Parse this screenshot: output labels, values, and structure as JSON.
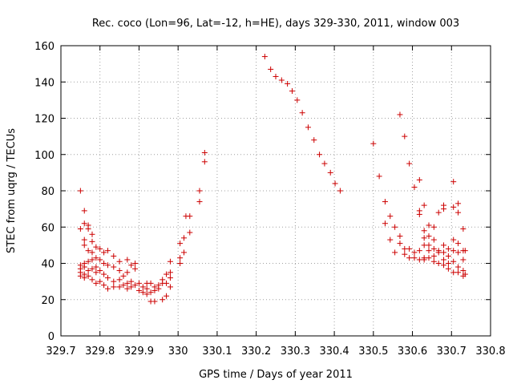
{
  "chart_data": {
    "type": "scatter",
    "title": "Rec. coco (Lon=96, Lat=-12, h=HE), days 329-330, 2011, window 003",
    "xlabel": "GPS time / Days of year 2011",
    "ylabel": "STEC from uqrg / TECUs",
    "xlim": [
      329.7,
      330.8
    ],
    "ylim": [
      0,
      160
    ],
    "xticks": [
      "329.7",
      "329.8",
      "329.9",
      "330",
      "330.1",
      "330.2",
      "330.3",
      "330.4",
      "330.5",
      "330.6",
      "330.7",
      "330.8"
    ],
    "xtick_values": [
      329.7,
      329.8,
      329.9,
      330.0,
      330.1,
      330.2,
      330.3,
      330.4,
      330.5,
      330.6,
      330.7,
      330.8
    ],
    "yticks": [
      "0",
      "20",
      "40",
      "60",
      "80",
      "100",
      "120",
      "140",
      "160"
    ],
    "ytick_values": [
      0,
      20,
      40,
      60,
      80,
      100,
      120,
      140,
      160
    ],
    "grid": true,
    "legend": "none",
    "marker": "+",
    "color": "#cc0000",
    "points": [
      [
        329.75,
        80
      ],
      [
        329.75,
        59
      ],
      [
        329.75,
        39
      ],
      [
        329.75,
        37
      ],
      [
        329.75,
        35
      ],
      [
        329.75,
        33
      ],
      [
        329.76,
        69
      ],
      [
        329.76,
        62
      ],
      [
        329.76,
        53
      ],
      [
        329.76,
        50
      ],
      [
        329.76,
        40
      ],
      [
        329.76,
        38
      ],
      [
        329.76,
        34
      ],
      [
        329.76,
        32
      ],
      [
        329.77,
        61
      ],
      [
        329.77,
        59
      ],
      [
        329.77,
        47
      ],
      [
        329.77,
        41
      ],
      [
        329.77,
        36
      ],
      [
        329.77,
        33
      ],
      [
        329.78,
        56
      ],
      [
        329.78,
        52
      ],
      [
        329.78,
        46
      ],
      [
        329.78,
        42
      ],
      [
        329.78,
        37
      ],
      [
        329.78,
        31
      ],
      [
        329.79,
        49
      ],
      [
        329.79,
        43
      ],
      [
        329.79,
        38
      ],
      [
        329.79,
        35
      ],
      [
        329.79,
        29
      ],
      [
        329.8,
        48
      ],
      [
        329.8,
        42
      ],
      [
        329.8,
        36
      ],
      [
        329.8,
        30
      ],
      [
        329.81,
        46
      ],
      [
        329.81,
        40
      ],
      [
        329.81,
        34
      ],
      [
        329.81,
        28
      ],
      [
        329.82,
        47
      ],
      [
        329.82,
        39
      ],
      [
        329.82,
        32
      ],
      [
        329.82,
        26
      ],
      [
        329.835,
        44
      ],
      [
        329.835,
        38
      ],
      [
        329.835,
        30
      ],
      [
        329.835,
        27
      ],
      [
        329.85,
        41
      ],
      [
        329.85,
        36
      ],
      [
        329.85,
        31
      ],
      [
        329.85,
        27
      ],
      [
        329.86,
        33
      ],
      [
        329.86,
        28
      ],
      [
        329.87,
        42
      ],
      [
        329.87,
        35
      ],
      [
        329.87,
        29
      ],
      [
        329.87,
        26
      ],
      [
        329.88,
        39
      ],
      [
        329.88,
        30
      ],
      [
        329.88,
        27
      ],
      [
        329.89,
        40
      ],
      [
        329.89,
        37
      ],
      [
        329.89,
        28
      ],
      [
        329.9,
        29
      ],
      [
        329.9,
        25
      ],
      [
        329.91,
        27
      ],
      [
        329.91,
        24
      ],
      [
        329.92,
        29
      ],
      [
        329.92,
        26
      ],
      [
        329.92,
        23
      ],
      [
        329.93,
        29
      ],
      [
        329.93,
        24
      ],
      [
        329.93,
        19
      ],
      [
        329.94,
        27
      ],
      [
        329.94,
        25
      ],
      [
        329.94,
        19
      ],
      [
        329.95,
        28
      ],
      [
        329.95,
        26
      ],
      [
        329.96,
        31
      ],
      [
        329.96,
        29
      ],
      [
        329.96,
        20
      ],
      [
        329.97,
        34
      ],
      [
        329.97,
        29
      ],
      [
        329.97,
        22
      ],
      [
        329.98,
        41
      ],
      [
        329.98,
        35
      ],
      [
        329.98,
        32
      ],
      [
        329.98,
        27
      ],
      [
        330.005,
        51
      ],
      [
        330.005,
        43
      ],
      [
        330.005,
        40
      ],
      [
        330.015,
        54
      ],
      [
        330.015,
        46
      ],
      [
        330.02,
        66
      ],
      [
        330.03,
        66
      ],
      [
        330.03,
        57
      ],
      [
        330.055,
        80
      ],
      [
        330.055,
        74
      ],
      [
        330.068,
        101
      ],
      [
        330.068,
        96
      ],
      [
        330.222,
        154
      ],
      [
        330.237,
        147
      ],
      [
        330.25,
        143
      ],
      [
        330.265,
        141
      ],
      [
        330.28,
        139
      ],
      [
        330.292,
        135
      ],
      [
        330.305,
        130
      ],
      [
        330.318,
        123
      ],
      [
        330.333,
        115
      ],
      [
        330.348,
        108
      ],
      [
        330.362,
        100
      ],
      [
        330.375,
        95
      ],
      [
        330.39,
        90
      ],
      [
        330.402,
        84
      ],
      [
        330.415,
        80
      ],
      [
        330.5,
        106
      ],
      [
        330.515,
        88
      ],
      [
        330.53,
        74
      ],
      [
        330.53,
        62
      ],
      [
        330.543,
        66
      ],
      [
        330.543,
        53
      ],
      [
        330.555,
        60
      ],
      [
        330.555,
        46
      ],
      [
        330.568,
        122
      ],
      [
        330.568,
        55
      ],
      [
        330.568,
        51
      ],
      [
        330.58,
        110
      ],
      [
        330.58,
        48
      ],
      [
        330.58,
        45
      ],
      [
        330.592,
        95
      ],
      [
        330.592,
        48
      ],
      [
        330.592,
        43
      ],
      [
        330.605,
        82
      ],
      [
        330.605,
        46
      ],
      [
        330.605,
        43
      ],
      [
        330.618,
        86
      ],
      [
        330.618,
        69
      ],
      [
        330.618,
        67
      ],
      [
        330.618,
        47
      ],
      [
        330.618,
        42
      ],
      [
        330.63,
        72
      ],
      [
        330.63,
        58
      ],
      [
        330.63,
        54
      ],
      [
        330.63,
        50
      ],
      [
        330.63,
        43
      ],
      [
        330.63,
        42
      ],
      [
        330.642,
        61
      ],
      [
        330.642,
        55
      ],
      [
        330.642,
        50
      ],
      [
        330.642,
        47
      ],
      [
        330.642,
        43
      ],
      [
        330.655,
        60
      ],
      [
        330.655,
        53
      ],
      [
        330.655,
        48
      ],
      [
        330.655,
        44
      ],
      [
        330.655,
        41
      ],
      [
        330.667,
        68
      ],
      [
        330.667,
        47
      ],
      [
        330.667,
        46
      ],
      [
        330.667,
        40
      ],
      [
        330.68,
        72
      ],
      [
        330.68,
        70
      ],
      [
        330.68,
        50
      ],
      [
        330.68,
        46
      ],
      [
        330.68,
        42
      ],
      [
        330.68,
        39
      ],
      [
        330.692,
        48
      ],
      [
        330.692,
        44
      ],
      [
        330.692,
        40
      ],
      [
        330.692,
        37
      ],
      [
        330.705,
        85
      ],
      [
        330.705,
        71
      ],
      [
        330.705,
        53
      ],
      [
        330.705,
        47
      ],
      [
        330.705,
        41
      ],
      [
        330.705,
        35
      ],
      [
        330.717,
        73
      ],
      [
        330.717,
        68
      ],
      [
        330.717,
        51
      ],
      [
        330.717,
        46
      ],
      [
        330.717,
        38
      ],
      [
        330.717,
        35
      ],
      [
        330.73,
        59
      ],
      [
        330.73,
        47
      ],
      [
        330.73,
        42
      ],
      [
        330.73,
        36
      ],
      [
        330.73,
        33
      ],
      [
        330.735,
        47
      ],
      [
        330.735,
        34
      ]
    ]
  }
}
